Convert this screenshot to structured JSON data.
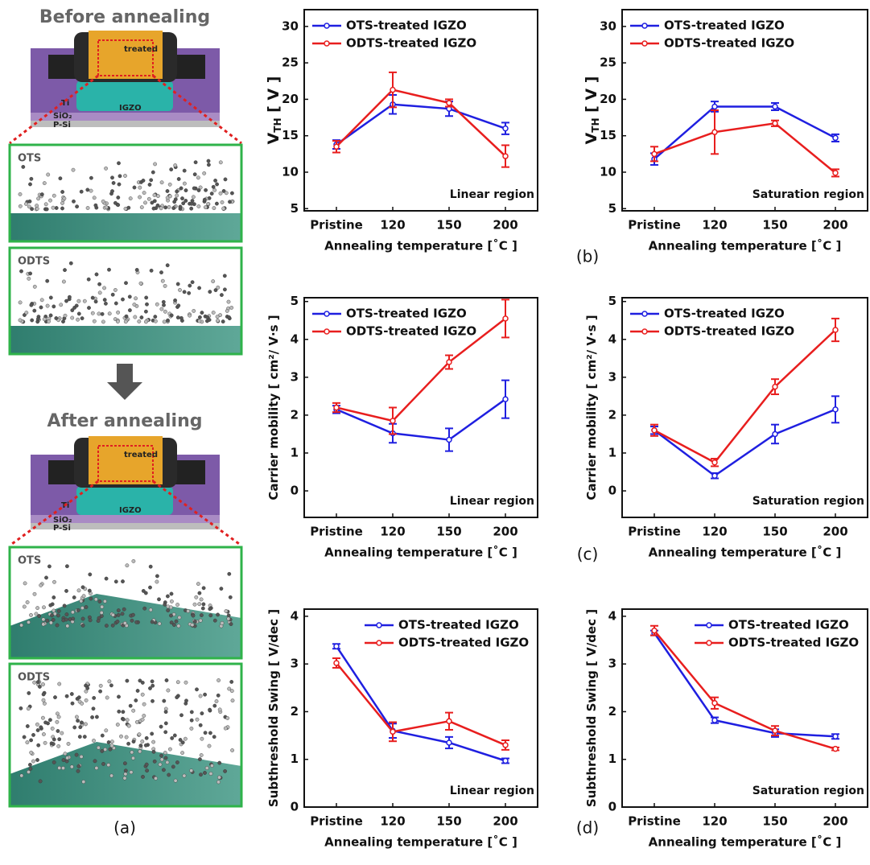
{
  "illustration": {
    "before_title": "Before annealing",
    "after_title": "After annealing",
    "device_labels": {
      "treated": "treated",
      "ti": "Ti",
      "igzo": "IGZO",
      "sio2": "SiO₂",
      "psi": "P-Si"
    },
    "box_labels": {
      "ots": "OTS",
      "odts": "ODTS"
    },
    "panel_label": "(a)"
  },
  "panel_labels": [
    "(b)",
    "(c)",
    "(d)"
  ],
  "chart_data": [
    {
      "type": "line",
      "ylabel": {
        "text": "V",
        "sub": "TH",
        "tail": " [ V ]"
      },
      "xlabel": "Annealing temperature [˚C ]",
      "annotation": "Linear region",
      "legend": "upper left",
      "categories": [
        "Pristine",
        "120",
        "150",
        "200"
      ],
      "ylim": [
        4.7,
        32.3
      ],
      "yticks": [
        5,
        10,
        15,
        20,
        25,
        30
      ],
      "series": [
        {
          "name": "OTS-treated IGZO",
          "color": "#1f1fe0",
          "values": [
            13.8,
            19.3,
            18.7,
            16.0
          ],
          "errors": [
            0.6,
            1.3,
            1.0,
            0.8
          ]
        },
        {
          "name": "ODTS-treated IGZO",
          "color": "#e81e1e",
          "values": [
            13.5,
            21.3,
            19.5,
            12.2
          ],
          "errors": [
            0.8,
            2.4,
            0.5,
            1.5
          ]
        }
      ]
    },
    {
      "type": "line",
      "ylabel": {
        "text": "V",
        "sub": "TH",
        "tail": " [ V ]"
      },
      "xlabel": "Annealing temperature [˚C ]",
      "annotation": "Saturation region",
      "legend": "upper left",
      "categories": [
        "Pristine",
        "120",
        "150",
        "200"
      ],
      "ylim": [
        4.7,
        32.3
      ],
      "yticks": [
        5,
        10,
        15,
        20,
        25,
        30
      ],
      "series": [
        {
          "name": "OTS-treated IGZO",
          "color": "#1f1fe0",
          "values": [
            11.8,
            19.0,
            19.0,
            14.7
          ],
          "errors": [
            0.8,
            0.7,
            0.5,
            0.5
          ]
        },
        {
          "name": "ODTS-treated IGZO",
          "color": "#e81e1e",
          "values": [
            12.5,
            15.5,
            16.7,
            9.9
          ],
          "errors": [
            1.0,
            3.0,
            0.4,
            0.5
          ]
        }
      ]
    },
    {
      "type": "line",
      "ylabel": {
        "text": "Carrier mobility [ cm²/ V·s ]"
      },
      "xlabel": "Annealing temperature [˚C ]",
      "annotation": "Linear region",
      "legend": "upper left",
      "categories": [
        "Pristine",
        "120",
        "150",
        "200"
      ],
      "ylim": [
        -0.7,
        5.1
      ],
      "yticks": [
        0,
        1,
        2,
        3,
        4,
        5
      ],
      "series": [
        {
          "name": "OTS-treated IGZO",
          "color": "#1f1fe0",
          "values": [
            2.15,
            1.52,
            1.35,
            2.42
          ],
          "errors": [
            0.1,
            0.25,
            0.3,
            0.5
          ]
        },
        {
          "name": "ODTS-treated IGZO",
          "color": "#e81e1e",
          "values": [
            2.2,
            1.85,
            3.4,
            4.55
          ],
          "errors": [
            0.12,
            0.35,
            0.18,
            0.5
          ]
        }
      ]
    },
    {
      "type": "line",
      "ylabel": {
        "text": "Carrier mobility [ cm²/ V·s ]"
      },
      "xlabel": "Annealing temperature [˚C ]",
      "annotation": "Saturation region",
      "legend": "upper left",
      "categories": [
        "Pristine",
        "120",
        "150",
        "200"
      ],
      "ylim": [
        -0.7,
        5.1
      ],
      "yticks": [
        0,
        1,
        2,
        3,
        4,
        5
      ],
      "series": [
        {
          "name": "OTS-treated IGZO",
          "color": "#1f1fe0",
          "values": [
            1.6,
            0.4,
            1.5,
            2.15
          ],
          "errors": [
            0.1,
            0.07,
            0.25,
            0.35
          ]
        },
        {
          "name": "ODTS-treated IGZO",
          "color": "#e81e1e",
          "values": [
            1.6,
            0.75,
            2.75,
            4.25
          ],
          "errors": [
            0.15,
            0.1,
            0.2,
            0.3
          ]
        }
      ]
    },
    {
      "type": "line",
      "ylabel": {
        "text": "Subthreshold Swing [ V/dec ]"
      },
      "xlabel": "Annealing temperature [˚C ]",
      "annotation": "Linear region",
      "legend": "upper right",
      "categories": [
        "Pristine",
        "120",
        "150",
        "200"
      ],
      "ylim": [
        0,
        4.15
      ],
      "yticks": [
        0,
        1,
        2,
        3,
        4
      ],
      "series": [
        {
          "name": "OTS-treated IGZO",
          "color": "#1f1fe0",
          "values": [
            3.37,
            1.6,
            1.35,
            0.97
          ],
          "errors": [
            0.05,
            0.15,
            0.12,
            0.05
          ]
        },
        {
          "name": "ODTS-treated IGZO",
          "color": "#e81e1e",
          "values": [
            3.02,
            1.58,
            1.8,
            1.3
          ],
          "errors": [
            0.1,
            0.2,
            0.18,
            0.1
          ]
        }
      ]
    },
    {
      "type": "line",
      "ylabel": {
        "text": "Subthreshold Swing [ V/dec ]"
      },
      "xlabel": "Annealing temperature [˚C ]",
      "annotation": "Saturation region",
      "legend": "upper right",
      "categories": [
        "Pristine",
        "120",
        "150",
        "200"
      ],
      "ylim": [
        0,
        4.15
      ],
      "yticks": [
        0,
        1,
        2,
        3,
        4
      ],
      "series": [
        {
          "name": "OTS-treated IGZO",
          "color": "#1f1fe0",
          "values": [
            3.65,
            1.82,
            1.55,
            1.48
          ],
          "errors": [
            0.05,
            0.06,
            0.08,
            0.05
          ]
        },
        {
          "name": "ODTS-treated IGZO",
          "color": "#e81e1e",
          "values": [
            3.7,
            2.18,
            1.6,
            1.22
          ],
          "errors": [
            0.1,
            0.12,
            0.1,
            0.03
          ]
        }
      ]
    }
  ]
}
